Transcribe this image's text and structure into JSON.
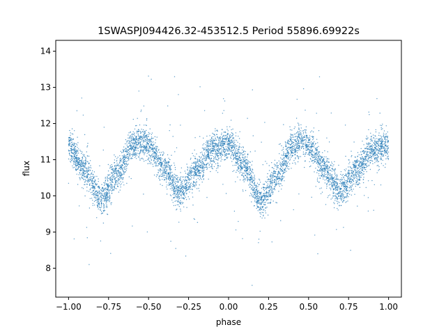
{
  "chart_data": {
    "type": "scatter",
    "title": "1SWASPJ094426.32-453512.5 Period 55896.69922s",
    "xlabel": "phase",
    "ylabel": "flux",
    "xlim": [
      -1.08,
      1.08
    ],
    "ylim": [
      7.2,
      14.3
    ],
    "xticks": [
      -1.0,
      -0.75,
      -0.5,
      -0.25,
      0.0,
      0.25,
      0.5,
      0.75,
      1.0
    ],
    "xtick_labels": [
      "−1.00",
      "−0.75",
      "−0.50",
      "−0.25",
      "0.00",
      "0.25",
      "0.50",
      "0.75",
      "1.00"
    ],
    "yticks": [
      8,
      9,
      10,
      11,
      12,
      13,
      14
    ],
    "ytick_labels": [
      "8",
      "9",
      "10",
      "11",
      "12",
      "13",
      "14"
    ],
    "grid": false,
    "point_color": "#1f77b4",
    "series": [
      {
        "x_range": [
          -1.0,
          1.0
        ],
        "curve_phase": [
          -1.0,
          -0.9,
          -0.8,
          -0.7,
          -0.6,
          -0.55,
          -0.5,
          -0.4,
          -0.3,
          -0.2,
          -0.1,
          0.0,
          0.1,
          0.2,
          0.3,
          0.4,
          0.45,
          0.5,
          0.6,
          0.7,
          0.8,
          0.9,
          1.0
        ],
        "curve_flux": [
          11.35,
          10.75,
          9.9,
          10.6,
          11.4,
          11.5,
          11.35,
          10.75,
          10.1,
          10.7,
          11.3,
          11.4,
          10.8,
          9.85,
          10.55,
          11.35,
          11.5,
          11.35,
          10.7,
          10.1,
          10.7,
          11.3,
          11.4
        ]
      }
    ]
  }
}
